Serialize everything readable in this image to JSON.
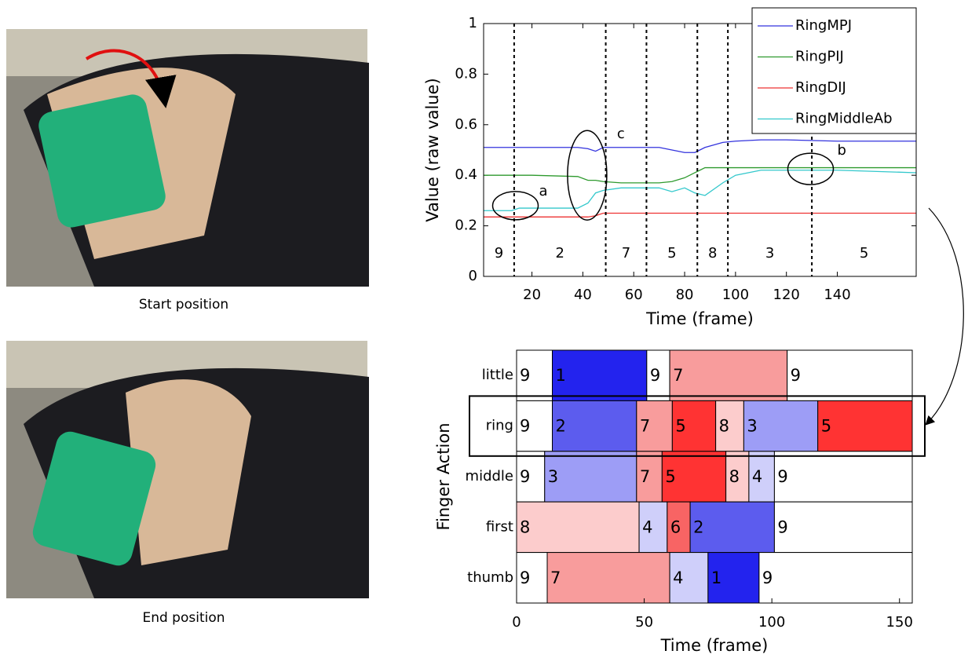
{
  "photos": [
    {
      "caption": "Start position"
    },
    {
      "caption": "End position"
    }
  ],
  "chart_data": [
    {
      "type": "line",
      "xlabel": "Time (frame)",
      "ylabel": "Value (raw value)",
      "x": [
        1,
        12,
        15,
        20,
        38,
        42,
        45,
        48,
        55,
        70,
        75,
        80,
        84,
        88,
        95,
        100,
        110,
        120,
        140,
        171
      ],
      "series": [
        {
          "name": "RingMPJ",
          "color": "#3333dd",
          "values": [
            0.51,
            0.51,
            0.51,
            0.51,
            0.51,
            0.505,
            0.495,
            0.51,
            0.51,
            0.51,
            0.5,
            0.49,
            0.49,
            0.51,
            0.53,
            0.535,
            0.54,
            0.54,
            0.535,
            0.535
          ]
        },
        {
          "name": "RingPIJ",
          "color": "#2e9a2e",
          "values": [
            0.4,
            0.4,
            0.4,
            0.4,
            0.395,
            0.38,
            0.38,
            0.375,
            0.37,
            0.37,
            0.375,
            0.39,
            0.41,
            0.43,
            0.43,
            0.43,
            0.43,
            0.43,
            0.43,
            0.43
          ]
        },
        {
          "name": "RingDIJ",
          "color": "#ee3333",
          "values": [
            0.235,
            0.235,
            0.235,
            0.235,
            0.235,
            0.235,
            0.24,
            0.25,
            0.25,
            0.25,
            0.25,
            0.25,
            0.25,
            0.25,
            0.25,
            0.25,
            0.25,
            0.25,
            0.25,
            0.25
          ]
        },
        {
          "name": "RingMiddleAb",
          "color": "#33c8cc",
          "values": [
            0.26,
            0.26,
            0.27,
            0.27,
            0.27,
            0.29,
            0.33,
            0.34,
            0.35,
            0.35,
            0.335,
            0.35,
            0.33,
            0.32,
            0.37,
            0.4,
            0.42,
            0.42,
            0.42,
            0.41
          ]
        }
      ],
      "boundaries": [
        13,
        49,
        65,
        85,
        97,
        130
      ],
      "segments": [
        "9",
        "2",
        "7",
        "5",
        "8",
        "3",
        "5"
      ],
      "annotations": [
        {
          "label": "a",
          "x": 13.5,
          "y": 0.28
        },
        {
          "label": "c",
          "x": 41.7,
          "y": 0.4
        },
        {
          "label": "b",
          "x": 129.5,
          "y": 0.425
        }
      ],
      "xlim": [
        1,
        171
      ],
      "ylim": [
        0,
        1
      ],
      "xticks": [
        20,
        40,
        60,
        80,
        100,
        120,
        140
      ],
      "yticks": [
        0,
        0.2,
        0.4,
        0.6,
        0.8,
        1
      ],
      "legend": "top-right"
    },
    {
      "type": "timeline",
      "xlabel": "Time (frame)",
      "ylabel": "Finger Action",
      "categories": [
        "little",
        "ring",
        "middle",
        "first",
        "thumb"
      ],
      "rows": [
        {
          "labels": [
            "9",
            "1",
            "9",
            "7",
            "9"
          ],
          "values": [
            14,
            37,
            9,
            46,
            49
          ]
        },
        {
          "labels": [
            "9",
            "2",
            "7",
            "5",
            "8",
            "3",
            "5"
          ],
          "values": [
            14,
            33,
            14,
            17,
            11,
            29,
            37
          ]
        },
        {
          "labels": [
            "9",
            "3",
            "7",
            "5",
            "8",
            "4",
            "9"
          ],
          "values": [
            11,
            36,
            10,
            25,
            9,
            10,
            54
          ]
        },
        {
          "labels": [
            "8",
            "4",
            "6",
            "2",
            "9"
          ],
          "values": [
            48,
            11,
            9,
            33,
            54
          ]
        },
        {
          "labels": [
            "9",
            "7",
            "4",
            "1",
            "9"
          ],
          "values": [
            12,
            48,
            15,
            20,
            60
          ]
        }
      ],
      "colors": {
        "1": "#2323ee",
        "2": "#5c5cee",
        "3": "#9d9df6",
        "4": "#cfcffa",
        "5": "#ff3333",
        "6": "#f86464",
        "7": "#f89c9c",
        "8": "#fccccc",
        "9": "#ffffff"
      },
      "xlim": [
        0,
        155
      ],
      "xticks": [
        0,
        50,
        100,
        150
      ]
    }
  ]
}
